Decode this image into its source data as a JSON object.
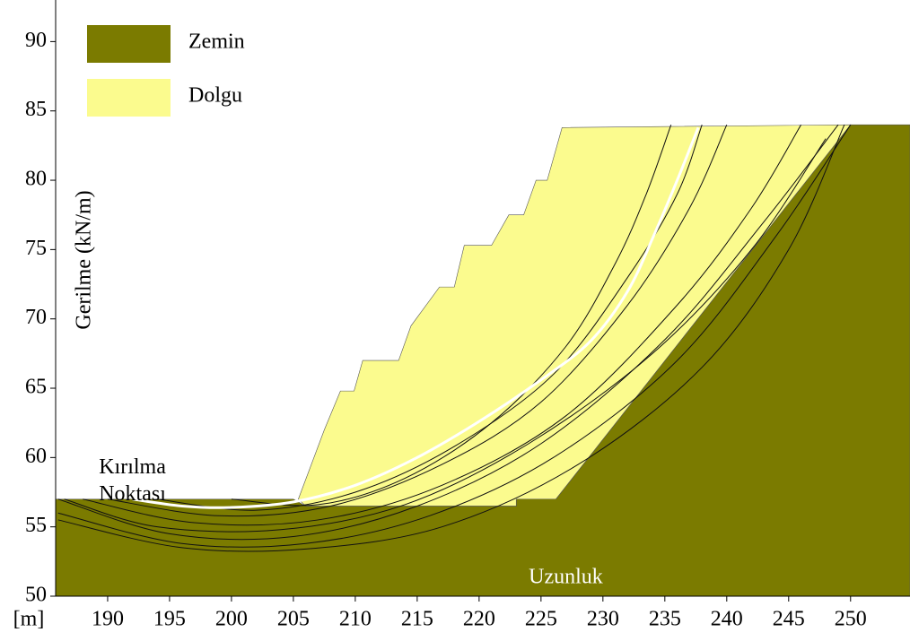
{
  "chart_data": {
    "type": "slope",
    "ylabel": "Gerilme (kN/m)",
    "xlabel": "[m]",
    "annotations": [
      {
        "lines": [
          "Kırılma",
          "Noktası"
        ],
        "at": [
          192,
          59.2
        ],
        "color": "#000000"
      },
      {
        "lines": [
          "Uzunluk"
        ],
        "at": [
          227,
          51.3
        ],
        "color": "#ffffff"
      }
    ],
    "xlim": [
      185.8,
      254.8
    ],
    "ylim": [
      50,
      93
    ],
    "xticks": [
      190,
      195,
      200,
      205,
      210,
      215,
      220,
      225,
      230,
      235,
      240,
      245,
      250
    ],
    "yticks": [
      50,
      55,
      60,
      65,
      70,
      75,
      80,
      85,
      90
    ],
    "regions": [
      {
        "name": "Zemin",
        "color": "#7b7b00",
        "x": [
          185.8,
          185.8,
          205,
          206,
          223,
          223,
          226.2,
          250,
          254.8,
          254.8
        ],
        "y": [
          50,
          57,
          57,
          56.5,
          56.5,
          57,
          57,
          84,
          84,
          50
        ]
      },
      {
        "name": "Dolgu",
        "color": "#fbfb8e",
        "x": [
          205.4,
          207.5,
          208.8,
          209.9,
          210.6,
          213.5,
          214.5,
          216.8,
          218,
          218.8,
          221,
          222.4,
          223.6,
          224.6,
          225.5,
          226.7,
          250,
          226.2,
          223,
          223,
          206
        ],
        "y": [
          57,
          62,
          64.8,
          64.8,
          67,
          67,
          69.5,
          72.3,
          72.3,
          75.3,
          75.3,
          77.5,
          77.5,
          80,
          80,
          83.8,
          84,
          57,
          57,
          56.5,
          56.5
        ]
      }
    ],
    "slip_surfaces": [
      {
        "color": "#111111",
        "x": [
          186,
          195,
          205,
          215,
          225,
          235,
          243,
          249
        ],
        "y": [
          57,
          54.5,
          54.3,
          56.5,
          61,
          68.5,
          77,
          84
        ]
      },
      {
        "color": "#111111",
        "x": [
          188,
          197,
          207,
          217,
          227,
          236,
          242,
          246
        ],
        "y": [
          57,
          55.3,
          55.5,
          58,
          63,
          71,
          78,
          84
        ]
      },
      {
        "color": "#111111",
        "x": [
          186,
          196,
          206,
          216,
          226,
          236,
          244,
          250
        ],
        "y": [
          56,
          53.8,
          53.8,
          55.8,
          60,
          67,
          76,
          84
        ]
      },
      {
        "color": "#111111",
        "x": [
          190,
          199,
          208,
          217,
          225,
          232,
          237,
          240
        ],
        "y": [
          57,
          55.8,
          56.5,
          59.5,
          64,
          71,
          78,
          84
        ]
      },
      {
        "color": "#111111",
        "x": [
          194,
          202,
          210,
          218,
          226,
          232,
          236,
          238
        ],
        "y": [
          57,
          56.2,
          57.5,
          60.8,
          66,
          73,
          79,
          84
        ]
      },
      {
        "color": "#111111",
        "x": [
          186.5,
          194,
          204,
          214,
          224,
          234,
          242,
          248
        ],
        "y": [
          57,
          55,
          54.8,
          56.6,
          61,
          67.5,
          75,
          83
        ]
      },
      {
        "color": "#111111",
        "x": [
          200,
          207,
          214,
          221,
          227,
          231,
          233.5,
          235.5
        ],
        "y": [
          57,
          56.6,
          58.5,
          62.5,
          68,
          74,
          79,
          84
        ]
      },
      {
        "color": "#111111",
        "x": [
          186,
          196,
          206,
          217,
          228,
          238,
          245,
          249.5
        ],
        "y": [
          55.5,
          53.5,
          53.4,
          55,
          59.5,
          66.5,
          75,
          84
        ]
      },
      {
        "color": "#ffffff",
        "x": [
          192,
          196,
          200,
          205,
          210,
          215,
          220,
          225,
          229,
          232,
          234.2,
          236,
          237.7
        ],
        "y": [
          57,
          56.5,
          56.4,
          56.8,
          58,
          60,
          62.6,
          65.6,
          68.4,
          72,
          76.2,
          80,
          83.8
        ]
      }
    ]
  }
}
